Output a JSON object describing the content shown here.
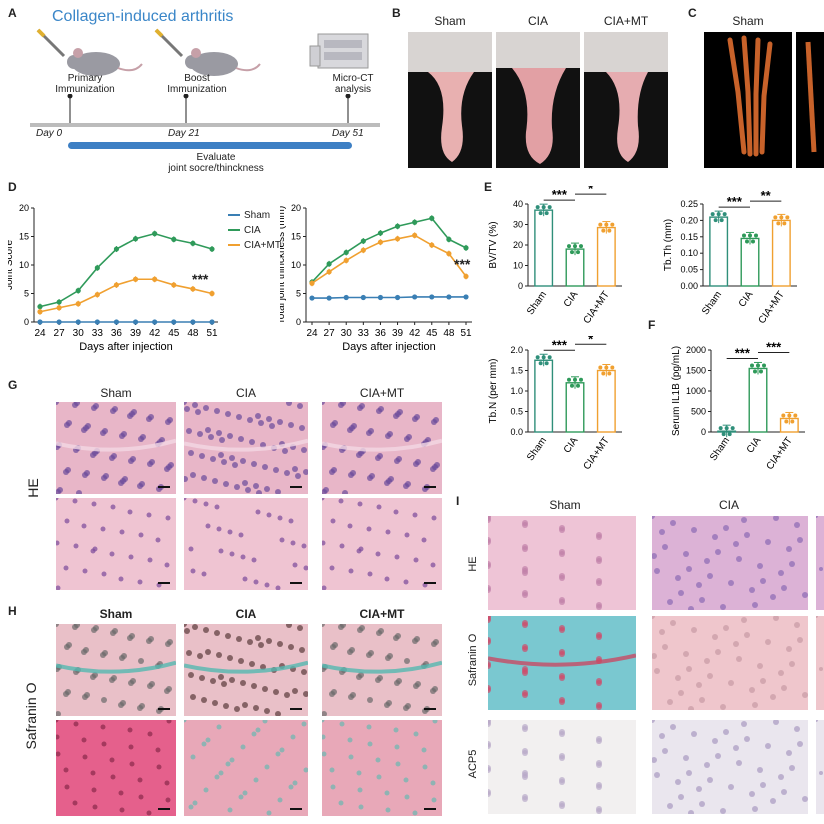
{
  "panelA": {
    "label": "A",
    "title": "Collagen-induced arthritis",
    "primary": "Primary\nImmunization",
    "boost": "Boost\nImmunization",
    "microct": "Micro-CT\nanalysis",
    "day0": "Day 0",
    "day21": "Day 21",
    "day51": "Day 51",
    "evaluate": "Evaluate\njoint socre/thinckness"
  },
  "panelB": {
    "label": "B",
    "groups": [
      "Sham",
      "CIA",
      "CIA+MT"
    ]
  },
  "panelC": {
    "label": "C",
    "groups": [
      "Sham"
    ]
  },
  "panelD": {
    "label": "D",
    "legend": [
      "Sham",
      "CIA",
      "CIA+MT"
    ],
    "sig": "***"
  },
  "panelE": {
    "label": "E"
  },
  "panelF": {
    "label": "F"
  },
  "panelG": {
    "label": "G",
    "groups": [
      "Sham",
      "CIA",
      "CIA+MT"
    ],
    "stain": "HE"
  },
  "panelH": {
    "label": "H",
    "groups": [
      "Sham",
      "CIA",
      "CIA+MT"
    ],
    "stain": "Safranin O"
  },
  "panelI": {
    "label": "I",
    "groups": [
      "Sham",
      "CIA"
    ],
    "rows": [
      "HE",
      "Safranin O",
      "ACP5"
    ]
  },
  "colors": {
    "sham": "#2f8f7a",
    "cia": "#2f9a5a",
    "mt": "#f0a030",
    "shamline": "#3a7fb4"
  },
  "chart_data": [
    {
      "type": "line",
      "id": "joint-score",
      "x": [
        24,
        27,
        30,
        33,
        36,
        39,
        42,
        45,
        48,
        51
      ],
      "xlabel": "Days after injection",
      "ylabel": "Joint Score",
      "ylim": [
        0,
        20
      ],
      "yticks": [
        0,
        5,
        10,
        15,
        20
      ],
      "series": [
        {
          "name": "Sham",
          "values": [
            0,
            0,
            0,
            0,
            0,
            0,
            0,
            0,
            0,
            0
          ]
        },
        {
          "name": "CIA",
          "values": [
            2.7,
            3.5,
            5.5,
            9.5,
            12.8,
            14.6,
            15.5,
            14.5,
            13.8,
            12.8
          ]
        },
        {
          "name": "CIA+MT",
          "values": [
            1.8,
            2.5,
            3.2,
            4.8,
            6.5,
            7.5,
            7.5,
            6.5,
            5.8,
            5
          ]
        }
      ]
    },
    {
      "type": "line",
      "id": "joint-thickness",
      "x": [
        24,
        27,
        30,
        33,
        36,
        39,
        42,
        45,
        48,
        51
      ],
      "xlabel": "Days after injection",
      "ylabel": "Total joint thinckness (mm)",
      "ylim": [
        0,
        20
      ],
      "yticks": [
        0,
        5,
        10,
        15,
        20
      ],
      "series": [
        {
          "name": "Sham",
          "values": [
            4.2,
            4.2,
            4.3,
            4.3,
            4.3,
            4.3,
            4.4,
            4.4,
            4.4,
            4.4
          ]
        },
        {
          "name": "CIA",
          "values": [
            7,
            10.2,
            12.2,
            14.2,
            15.6,
            16.8,
            17.5,
            18.2,
            14.5,
            13
          ]
        },
        {
          "name": "CIA+MT",
          "values": [
            6.8,
            8.8,
            10.8,
            12.6,
            14,
            14.6,
            15.2,
            13.5,
            12,
            8
          ]
        }
      ]
    },
    {
      "type": "bar",
      "id": "bvtv",
      "categories": [
        "Sham",
        "CIA",
        "CIA+MT"
      ],
      "values": [
        37,
        18,
        28.5
      ],
      "ylabel": "BV/TV (%)",
      "ylim": [
        0,
        40
      ],
      "yticks": [
        0,
        10,
        20,
        30,
        40
      ],
      "sig": [
        "***",
        "*"
      ]
    },
    {
      "type": "bar",
      "id": "tbth",
      "categories": [
        "Sham",
        "CIA",
        "CIA+MT"
      ],
      "values": [
        0.21,
        0.145,
        0.2
      ],
      "ylabel": "Tb.Th (mm)",
      "ylim": [
        0,
        0.25
      ],
      "yticks": [
        0.0,
        0.05,
        0.1,
        0.15,
        0.2,
        0.25
      ],
      "sig": [
        "***",
        "**"
      ]
    },
    {
      "type": "bar",
      "id": "tbn",
      "categories": [
        "Sham",
        "CIA",
        "CIA+MT"
      ],
      "values": [
        1.75,
        1.2,
        1.5
      ],
      "ylabel": "Tb.N (per mm)",
      "ylim": [
        0,
        2.0
      ],
      "yticks": [
        0.0,
        0.5,
        1.0,
        1.5,
        2.0
      ],
      "sig": [
        "***",
        "*"
      ]
    },
    {
      "type": "bar",
      "id": "il1b",
      "categories": [
        "Sham",
        "CIA",
        "CIA+MT"
      ],
      "values": [
        20,
        1550,
        330
      ],
      "ylabel": "Serum IL1B (pg/mL)",
      "ylim": [
        0,
        2000
      ],
      "yticks": [
        0,
        500,
        1000,
        1500,
        2000
      ],
      "sig": [
        "***",
        "***"
      ]
    }
  ]
}
